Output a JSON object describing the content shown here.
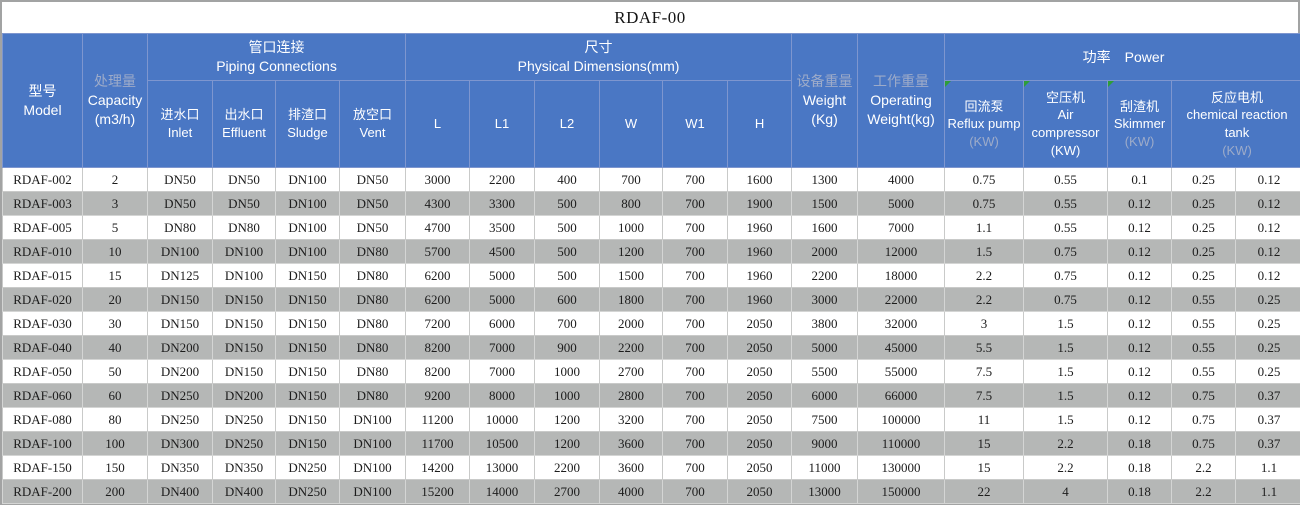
{
  "title": "RDAF-00",
  "header": {
    "model": {
      "zh": "型号",
      "en": "Model"
    },
    "capacity": {
      "zh": "处理量",
      "en": "Capacity",
      "unit": "(m3/h)"
    },
    "piping": {
      "zh": "管口连接",
      "en": "Piping Connections"
    },
    "inlet": {
      "zh": "进水口",
      "en": "Inlet"
    },
    "effluent": {
      "zh": "出水口",
      "en": "Effluent"
    },
    "sludge": {
      "zh": "排渣口",
      "en": "Sludge"
    },
    "vent": {
      "zh": "放空口",
      "en": "Vent"
    },
    "dimensions": {
      "zh": "尺寸",
      "en": "Physical Dimensions(mm)"
    },
    "dims": [
      "L",
      "L1",
      "L2",
      "W",
      "W1",
      "H"
    ],
    "weight": {
      "zh": "设备重量",
      "en": "Weight",
      "unit": "(Kg)"
    },
    "operating_weight": {
      "zh": "工作重量",
      "en": "Operating",
      "en2": "Weight(kg)"
    },
    "power": {
      "zh": "功率",
      "en": "Power"
    },
    "reflux_pump": {
      "zh": "回流泵",
      "en": "Reflux pump",
      "unit": "(KW)"
    },
    "air_compressor": {
      "zh": "空压机",
      "en": "Air compressor",
      "unit": "(KW)"
    },
    "skimmer": {
      "zh": "刮渣机",
      "en": "Skimmer",
      "unit": "(KW)"
    },
    "reaction": {
      "zh": "反应电机",
      "en": "chemical reaction tank",
      "unit": "(KW)"
    }
  },
  "rows": [
    [
      "RDAF-002",
      "2",
      "DN50",
      "DN50",
      "DN100",
      "DN50",
      "3000",
      "2200",
      "400",
      "700",
      "700",
      "1600",
      "1300",
      "4000",
      "0.75",
      "0.55",
      "0.1",
      "0.25",
      "0.12"
    ],
    [
      "RDAF-003",
      "3",
      "DN50",
      "DN50",
      "DN100",
      "DN50",
      "4300",
      "3300",
      "500",
      "800",
      "700",
      "1900",
      "1500",
      "5000",
      "0.75",
      "0.55",
      "0.12",
      "0.25",
      "0.12"
    ],
    [
      "RDAF-005",
      "5",
      "DN80",
      "DN80",
      "DN100",
      "DN50",
      "4700",
      "3500",
      "500",
      "1000",
      "700",
      "1960",
      "1600",
      "7000",
      "1.1",
      "0.55",
      "0.12",
      "0.25",
      "0.12"
    ],
    [
      "RDAF-010",
      "10",
      "DN100",
      "DN100",
      "DN100",
      "DN80",
      "5700",
      "4500",
      "500",
      "1200",
      "700",
      "1960",
      "2000",
      "12000",
      "1.5",
      "0.75",
      "0.12",
      "0.25",
      "0.12"
    ],
    [
      "RDAF-015",
      "15",
      "DN125",
      "DN100",
      "DN150",
      "DN80",
      "6200",
      "5000",
      "500",
      "1500",
      "700",
      "1960",
      "2200",
      "18000",
      "2.2",
      "0.75",
      "0.12",
      "0.25",
      "0.12"
    ],
    [
      "RDAF-020",
      "20",
      "DN150",
      "DN150",
      "DN150",
      "DN80",
      "6200",
      "5000",
      "600",
      "1800",
      "700",
      "1960",
      "3000",
      "22000",
      "2.2",
      "0.75",
      "0.12",
      "0.55",
      "0.25"
    ],
    [
      "RDAF-030",
      "30",
      "DN150",
      "DN150",
      "DN150",
      "DN80",
      "7200",
      "6000",
      "700",
      "2000",
      "700",
      "2050",
      "3800",
      "32000",
      "3",
      "1.5",
      "0.12",
      "0.55",
      "0.25"
    ],
    [
      "RDAF-040",
      "40",
      "DN200",
      "DN150",
      "DN150",
      "DN80",
      "8200",
      "7000",
      "900",
      "2200",
      "700",
      "2050",
      "5000",
      "45000",
      "5.5",
      "1.5",
      "0.12",
      "0.55",
      "0.25"
    ],
    [
      "RDAF-050",
      "50",
      "DN200",
      "DN150",
      "DN150",
      "DN80",
      "8200",
      "7000",
      "1000",
      "2700",
      "700",
      "2050",
      "5500",
      "55000",
      "7.5",
      "1.5",
      "0.12",
      "0.55",
      "0.25"
    ],
    [
      "RDAF-060",
      "60",
      "DN250",
      "DN200",
      "DN150",
      "DN80",
      "9200",
      "8000",
      "1000",
      "2800",
      "700",
      "2050",
      "6000",
      "66000",
      "7.5",
      "1.5",
      "0.12",
      "0.75",
      "0.37"
    ],
    [
      "RDAF-080",
      "80",
      "DN250",
      "DN250",
      "DN150",
      "DN100",
      "11200",
      "10000",
      "1200",
      "3200",
      "700",
      "2050",
      "7500",
      "100000",
      "11",
      "1.5",
      "0.12",
      "0.75",
      "0.37"
    ],
    [
      "RDAF-100",
      "100",
      "DN300",
      "DN250",
      "DN150",
      "DN100",
      "11700",
      "10500",
      "1200",
      "3600",
      "700",
      "2050",
      "9000",
      "110000",
      "15",
      "2.2",
      "0.18",
      "0.75",
      "0.37"
    ],
    [
      "RDAF-150",
      "150",
      "DN350",
      "DN350",
      "DN250",
      "DN100",
      "14200",
      "13000",
      "2200",
      "3600",
      "700",
      "2050",
      "11000",
      "130000",
      "15",
      "2.2",
      "0.18",
      "2.2",
      "1.1"
    ],
    [
      "RDAF-200",
      "200",
      "DN400",
      "DN400",
      "DN250",
      "DN100",
      "15200",
      "14000",
      "2700",
      "4000",
      "700",
      "2050",
      "13000",
      "150000",
      "22",
      "4",
      "0.18",
      "2.2",
      "1.1"
    ]
  ],
  "colors": {
    "header_blue": "#4a77c4",
    "alt_row_gray": "#b5b7b6",
    "grid_line": "#c9cac9",
    "muted_header_text": "#9dabc9",
    "flag_green": "#2d9e38"
  }
}
